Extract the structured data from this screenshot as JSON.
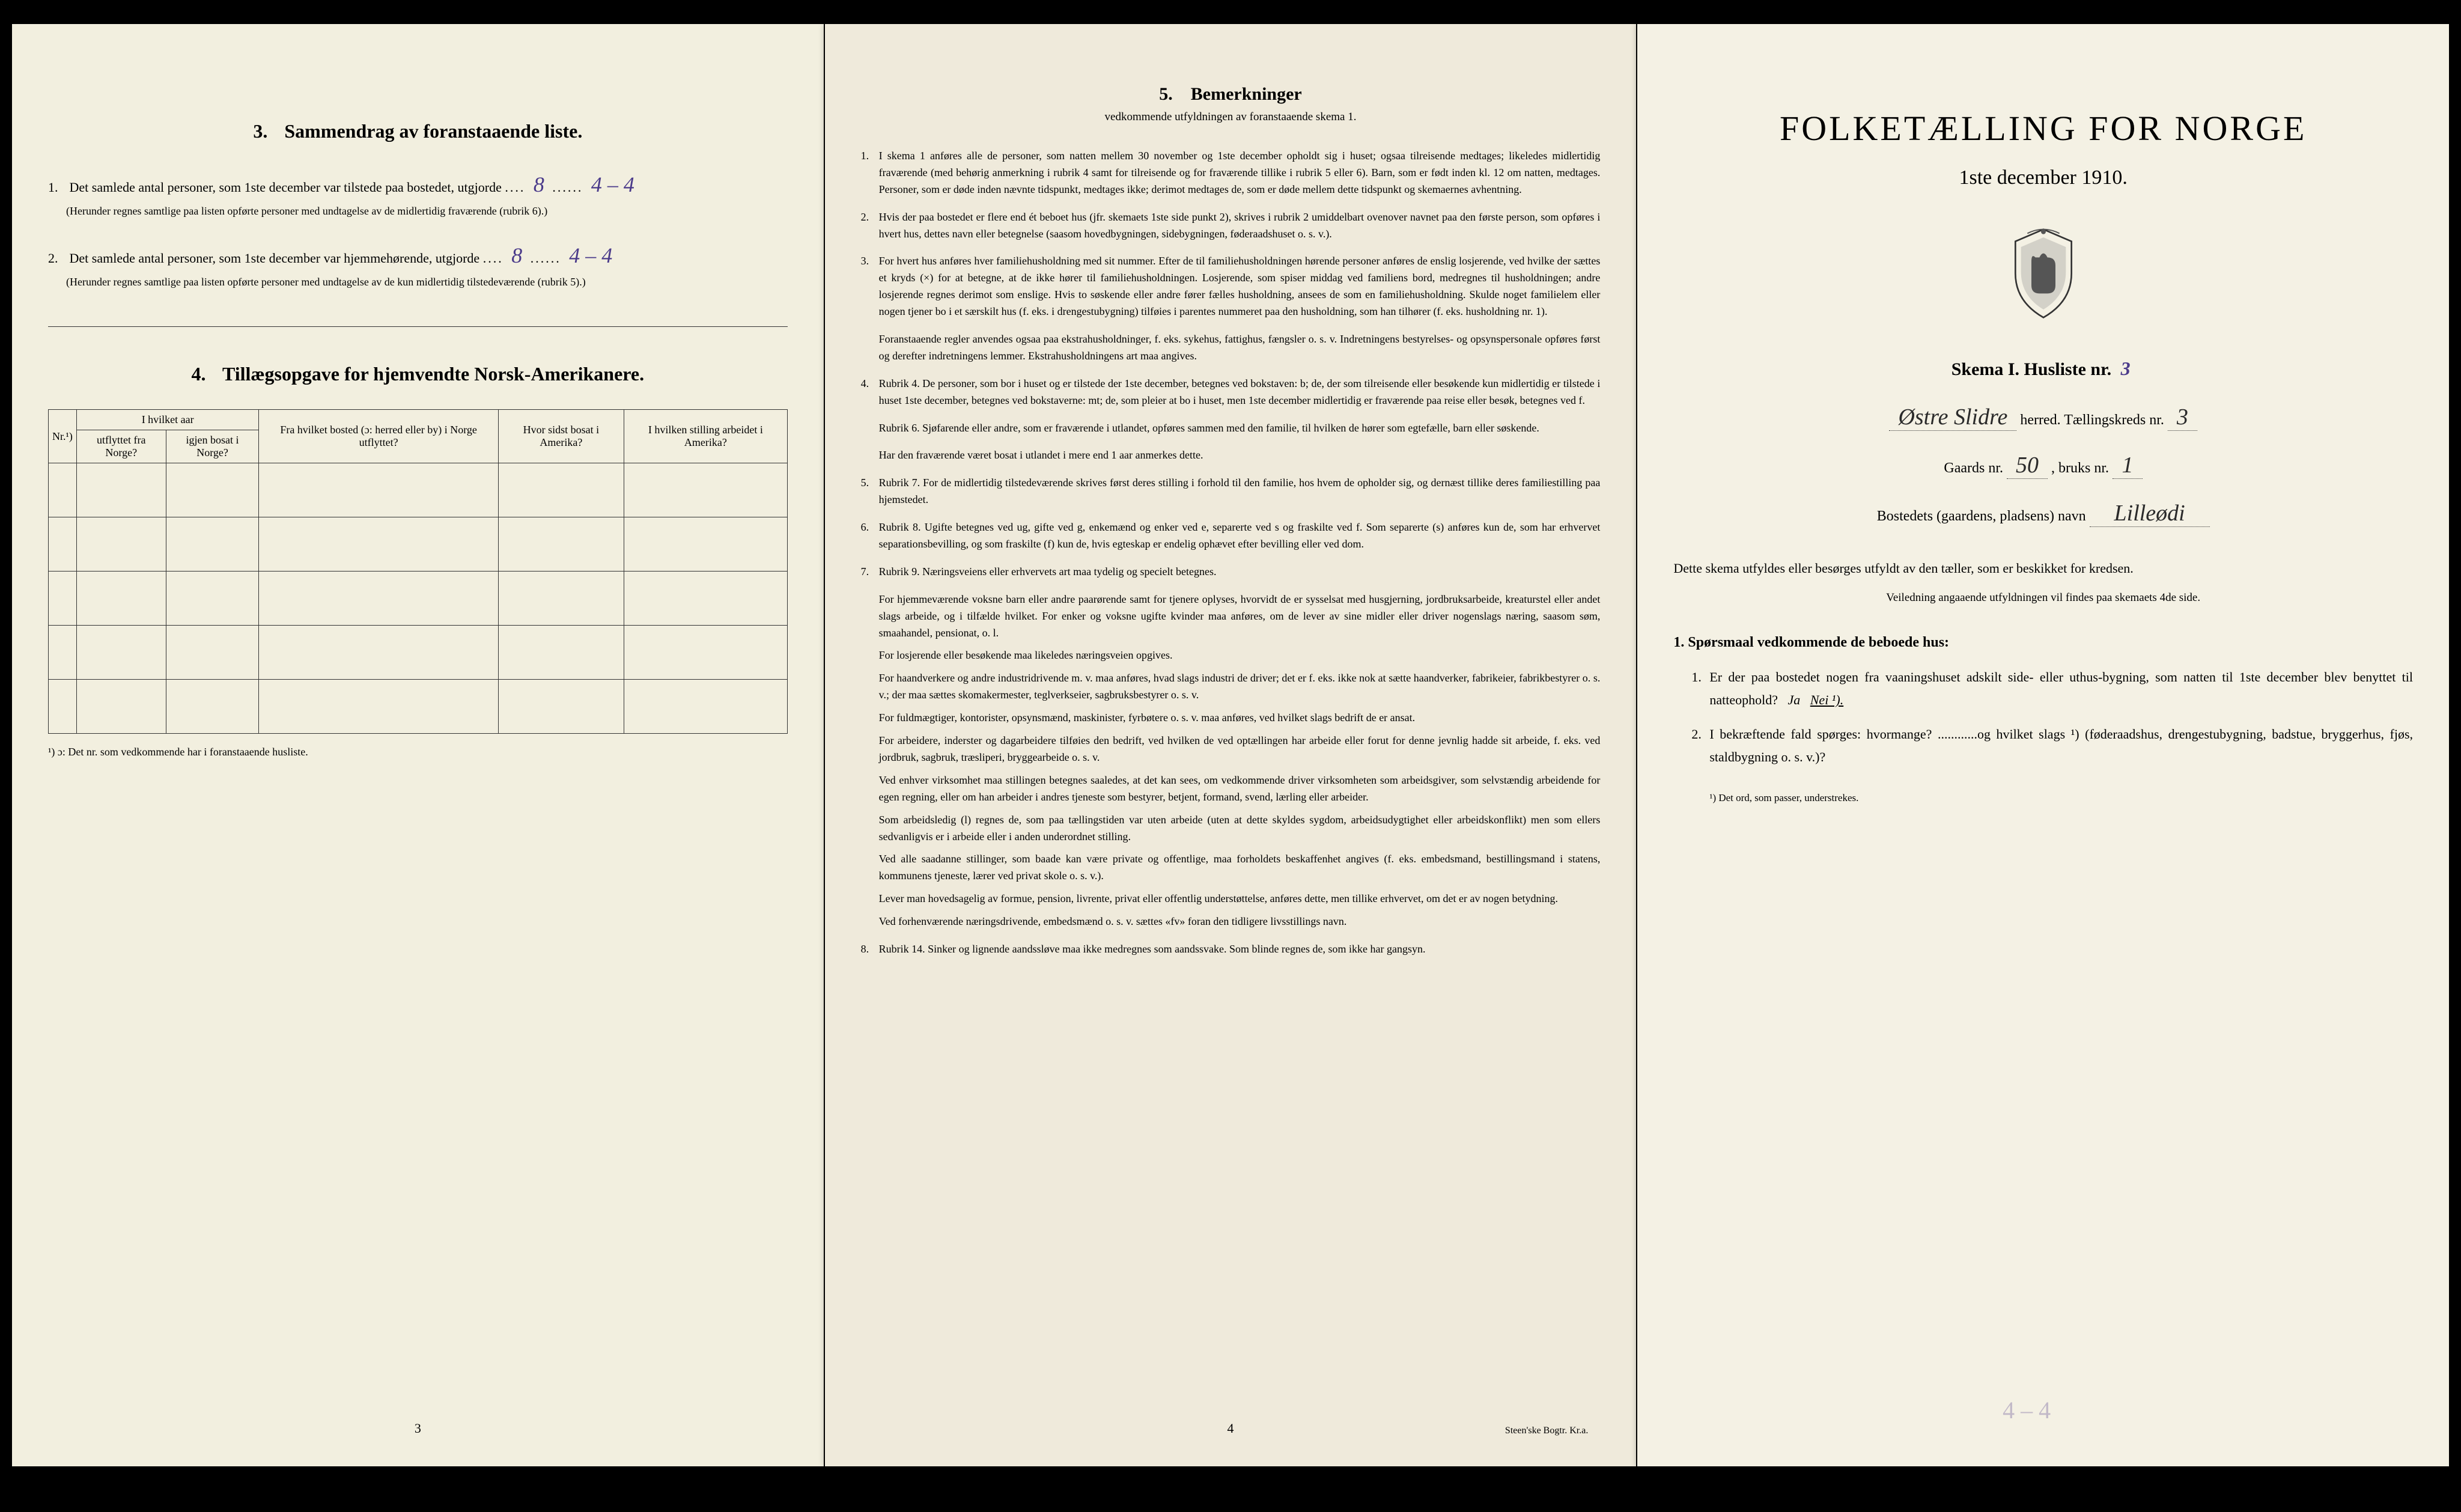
{
  "colors": {
    "page_bg_1": "#f2efdf",
    "page_bg_2": "#efeadb",
    "page_bg_3": "#f4f1e4",
    "text": "#1a1a1a",
    "handwriting": "#4a3a8a",
    "border": "#333333"
  },
  "page1": {
    "section3": {
      "num": "3.",
      "title": "Sammendrag av foranstaaende liste.",
      "item1_prefix": "1.",
      "item1_text_a": "Det samlede antal personer, som 1ste december var tilstede paa bostedet, utgjorde",
      "item1_hw1": "8",
      "item1_hw2": "4 – 4",
      "item1_note": "(Herunder regnes samtlige paa listen opførte personer med undtagelse av de midlertidig fraværende (rubrik 6).)",
      "item2_prefix": "2.",
      "item2_text_a": "Det samlede antal personer, som 1ste december var hjemmehørende, utgjorde",
      "item2_hw1": "8",
      "item2_hw2": "4 – 4",
      "item2_note": "(Herunder regnes samtlige paa listen opførte personer med undtagelse av de kun midlertidig tilstedeværende (rubrik 5).)"
    },
    "section4": {
      "num": "4.",
      "title": "Tillægsopgave for hjemvendte Norsk-Amerikanere.",
      "table": {
        "col_nr": "Nr.¹)",
        "col_group1": "I hvilket aar",
        "col_utflyttet": "utflyttet fra Norge?",
        "col_igjen": "igjen bosat i Norge?",
        "col_bosted": "Fra hvilket bosted (ɔ: herred eller by) i Norge utflyttet?",
        "col_sidst": "Hvor sidst bosat i Amerika?",
        "col_stilling": "I hvilken stilling arbeidet i Amerika?",
        "empty_rows": 5
      },
      "footnote": "¹) ɔ: Det nr. som vedkommende har i foranstaaende husliste."
    },
    "page_num": "3"
  },
  "page2": {
    "heading_num": "5.",
    "heading": "Bemerkninger",
    "subheading": "vedkommende utfyldningen av foranstaaende skema 1.",
    "items": [
      {
        "n": "1.",
        "t": "I skema 1 anføres alle de personer, som natten mellem 30 november og 1ste december opholdt sig i huset; ogsaa tilreisende medtages; likeledes midlertidig fraværende (med behørig anmerkning i rubrik 4 samt for tilreisende og for fraværende tillike i rubrik 5 eller 6). Barn, som er født inden kl. 12 om natten, medtages. Personer, som er døde inden nævnte tidspunkt, medtages ikke; derimot medtages de, som er døde mellem dette tidspunkt og skemaernes avhentning."
      },
      {
        "n": "2.",
        "t": "Hvis der paa bostedet er flere end ét beboet hus (jfr. skemaets 1ste side punkt 2), skrives i rubrik 2 umiddelbart ovenover navnet paa den første person, som opføres i hvert hus, dettes navn eller betegnelse (saasom hovedbygningen, sidebygningen, føderaadshuset o. s. v.)."
      },
      {
        "n": "3.",
        "t": "For hvert hus anføres hver familiehusholdning med sit nummer. Efter de til familiehusholdningen hørende personer anføres de enslig losjerende, ved hvilke der sættes et kryds (×) for at betegne, at de ikke hører til familiehusholdningen. Losjerende, som spiser middag ved familiens bord, medregnes til husholdningen; andre losjerende regnes derimot som enslige. Hvis to søskende eller andre fører fælles husholdning, ansees de som en familiehusholdning. Skulde noget familielem eller nogen tjener bo i et særskilt hus (f. eks. i drengestubygning) tilføies i parentes nummeret paa den husholdning, som han tilhører (f. eks. husholdning nr. 1)."
      },
      {
        "n": "",
        "t": "Foranstaaende regler anvendes ogsaa paa ekstrahusholdninger, f. eks. sykehus, fattighus, fængsler o. s. v. Indretningens bestyrelses- og opsynspersonale opføres først og derefter indretningens lemmer. Ekstrahusholdningens art maa angives."
      },
      {
        "n": "4.",
        "t": "Rubrik 4. De personer, som bor i huset og er tilstede der 1ste december, betegnes ved bokstaven: b; de, der som tilreisende eller besøkende kun midlertidig er tilstede i huset 1ste december, betegnes ved bokstaverne: mt; de, som pleier at bo i huset, men 1ste december midlertidig er fraværende paa reise eller besøk, betegnes ved f."
      },
      {
        "n": "",
        "t": "Rubrik 6. Sjøfarende eller andre, som er fraværende i utlandet, opføres sammen med den familie, til hvilken de hører som egtefælle, barn eller søskende."
      },
      {
        "n": "",
        "t": "Har den fraværende været bosat i utlandet i mere end 1 aar anmerkes dette."
      },
      {
        "n": "5.",
        "t": "Rubrik 7. For de midlertidig tilstedeværende skrives først deres stilling i forhold til den familie, hos hvem de opholder sig, og dernæst tillike deres familiestilling paa hjemstedet."
      },
      {
        "n": "6.",
        "t": "Rubrik 8. Ugifte betegnes ved ug, gifte ved g, enkemænd og enker ved e, separerte ved s og fraskilte ved f. Som separerte (s) anføres kun de, som har erhvervet separationsbevilling, og som fraskilte (f) kun de, hvis egteskap er endelig ophævet efter bevilling eller ved dom."
      },
      {
        "n": "7.",
        "t": "Rubrik 9. Næringsveiens eller erhvervets art maa tydelig og specielt betegnes."
      }
    ],
    "paras": [
      "For hjemmeværende voksne barn eller andre paarørende samt for tjenere oplyses, hvorvidt de er sysselsat med husgjerning, jordbruksarbeide, kreaturstel eller andet slags arbeide, og i tilfælde hvilket. For enker og voksne ugifte kvinder maa anføres, om de lever av sine midler eller driver nogenslags næring, saasom søm, smaahandel, pensionat, o. l.",
      "For losjerende eller besøkende maa likeledes næringsveien opgives.",
      "For haandverkere og andre industridrivende m. v. maa anføres, hvad slags industri de driver; det er f. eks. ikke nok at sætte haandverker, fabrikeier, fabrikbestyrer o. s. v.; der maa sættes skomakermester, teglverkseier, sagbruksbestyrer o. s. v.",
      "For fuldmægtiger, kontorister, opsynsmænd, maskinister, fyrbøtere o. s. v. maa anføres, ved hvilket slags bedrift de er ansat.",
      "For arbeidere, inderster og dagarbeidere tilføies den bedrift, ved hvilken de ved optællingen har arbeide eller forut for denne jevnlig hadde sit arbeide, f. eks. ved jordbruk, sagbruk, træsliperi, bryggearbeide o. s. v.",
      "Ved enhver virksomhet maa stillingen betegnes saaledes, at det kan sees, om vedkommende driver virksomheten som arbeidsgiver, som selvstændig arbeidende for egen regning, eller om han arbeider i andres tjeneste som bestyrer, betjent, formand, svend, lærling eller arbeider.",
      "Som arbeidsledig (l) regnes de, som paa tællingstiden var uten arbeide (uten at dette skyldes sygdom, arbeidsudygtighet eller arbeidskonflikt) men som ellers sedvanligvis er i arbeide eller i anden underordnet stilling.",
      "Ved alle saadanne stillinger, som baade kan være private og offentlige, maa forholdets beskaffenhet angives (f. eks. embedsmand, bestillingsmand i statens, kommunens tjeneste, lærer ved privat skole o. s. v.).",
      "Lever man hovedsagelig av formue, pension, livrente, privat eller offentlig understøttelse, anføres dette, men tillike erhvervet, om det er av nogen betydning.",
      "Ved forhenværende næringsdrivende, embedsmænd o. s. v. sættes «fv» foran den tidligere livsstillings navn."
    ],
    "item8": {
      "n": "8.",
      "t": "Rubrik 14. Sinker og lignende aandssløve maa ikke medregnes som aandssvake. Som blinde regnes de, som ikke har gangsyn."
    },
    "page_num": "4",
    "printer": "Steen'ske Bogtr. Kr.a."
  },
  "page3": {
    "title": "FOLKETÆLLING FOR NORGE",
    "date": "1ste december 1910.",
    "skema_label": "Skema I.   Husliste nr.",
    "husliste_nr": "3",
    "herred_hw": "Østre Slidre",
    "herred_label": "herred.   Tællingskreds nr.",
    "kreds_nr": "3",
    "gaards_label": "Gaards nr.",
    "gaards_nr": "50",
    "bruks_label": ", bruks nr.",
    "bruks_nr": "1",
    "bosted_label": "Bostedets (gaardens, pladsens) navn",
    "bosted_hw": "Lilleødi",
    "descriptor": "Dette skema utfyldes eller besørges utfyldt av den tæller, som er beskikket for kredsen.",
    "sub_desc": "Veiledning angaaende utfyldningen vil findes paa skemaets 4de side.",
    "sporsmaal_head": "1. Spørsmaal vedkommende de beboede hus:",
    "q1": {
      "n": "1.",
      "t_a": "Er der paa bostedet nogen fra vaaningshuset adskilt side- eller uthus-bygning, som natten til 1ste december blev benyttet til natteophold?",
      "ja": "Ja",
      "nei": "Nei ¹)."
    },
    "q2": {
      "n": "2.",
      "t": "I bekræftende fald spørges: hvormange? ............og hvilket slags ¹) (føderaadshus, drengestubygning, badstue, bryggerhus, fjøs, staldbygning o. s. v.)?"
    },
    "footnote": "¹) Det ord, som passer, understrekes.",
    "pencil": "4 – 4"
  }
}
